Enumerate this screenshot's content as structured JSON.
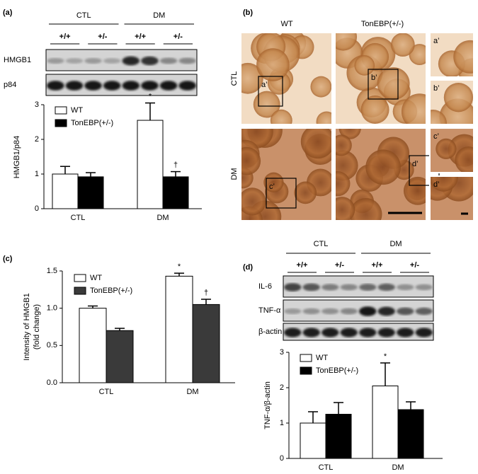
{
  "panel_labels": [
    "(a)",
    "(b)",
    "(c)",
    "(d)"
  ],
  "blots": [
    {
      "groups": [
        "CTL",
        "DM"
      ],
      "genotypes": [
        "+/+",
        "+/-",
        "+/+",
        "+/-"
      ],
      "rows": [
        "HMGB1",
        "p84"
      ]
    },
    {
      "groups": [
        "CTL",
        "DM"
      ],
      "genotypes": [
        "+/+",
        "+/-",
        "+/+",
        "+/-"
      ],
      "rows": [
        "IL-6",
        "TNF-α",
        "β-actin"
      ]
    }
  ],
  "micrographs": {
    "columns": [
      "WT",
      "TonEBP(+/-)"
    ],
    "rows": [
      "CTL",
      "DM"
    ],
    "insets": [
      "a’",
      "b’",
      "c’",
      "d’"
    ]
  },
  "chart_data": [
    {
      "type": "bar",
      "ylabel": "HMGB1/p84",
      "categories": [
        "CTL",
        "DM"
      ],
      "series": [
        {
          "name": "WT",
          "color": "#ffffff",
          "values": [
            1.0,
            2.55
          ],
          "errors": [
            0.22,
            0.5
          ],
          "markers": [
            null,
            "*"
          ]
        },
        {
          "name": "TonEBP(+/-)",
          "color": "#000000",
          "values": [
            0.92,
            0.92
          ],
          "errors": [
            0.12,
            0.15
          ],
          "markers": [
            null,
            "†"
          ]
        }
      ],
      "ylim": [
        0,
        3
      ],
      "yticks": [
        0,
        1,
        2,
        3
      ],
      "legend": "upper left"
    },
    {
      "type": "bar",
      "ylabel": [
        "Intensity of HMGB1",
        "(fold change)"
      ],
      "categories": [
        "CTL",
        "DM"
      ],
      "series": [
        {
          "name": "WT",
          "color": "#ffffff",
          "values": [
            1.0,
            1.43
          ],
          "errors": [
            0.03,
            0.04
          ],
          "markers": [
            null,
            "*"
          ]
        },
        {
          "name": "TonEBP(+/-)",
          "color": "#3a3a3a",
          "values": [
            0.7,
            1.05
          ],
          "errors": [
            0.03,
            0.07
          ],
          "markers": [
            null,
            "†"
          ]
        }
      ],
      "ylim": [
        0,
        1.5
      ],
      "yticks": [
        {
          "value": 0,
          "label": "0.0"
        },
        0.5,
        {
          "value": 1,
          "label": "1.0"
        },
        1.5
      ],
      "legend": "upper left"
    },
    {
      "type": "bar",
      "ylabel": "TNF-α/β-actin",
      "categories": [
        "CTL",
        "DM"
      ],
      "series": [
        {
          "name": "WT",
          "color": "#ffffff",
          "values": [
            1.0,
            2.05
          ],
          "errors": [
            0.32,
            0.65
          ],
          "markers": [
            null,
            "*"
          ]
        },
        {
          "name": "TonEBP(+/-)",
          "color": "#000000",
          "values": [
            1.25,
            1.38
          ],
          "errors": [
            0.33,
            0.22
          ],
          "markers": [
            null,
            null
          ]
        }
      ],
      "ylim": [
        0,
        3
      ],
      "yticks": [
        0,
        1,
        2,
        3
      ],
      "legend": "upper left"
    }
  ]
}
